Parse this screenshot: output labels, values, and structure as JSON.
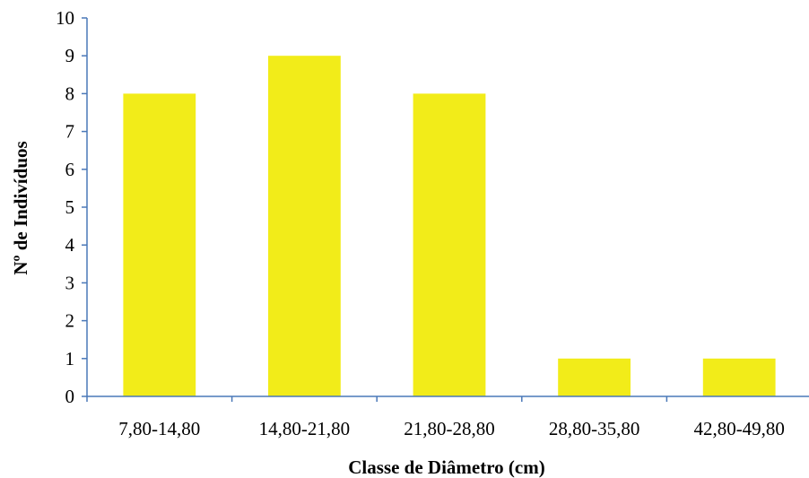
{
  "chart_data": {
    "type": "bar",
    "categories": [
      "7,80-14,80",
      "14,80-21,80",
      "21,80-28,80",
      "28,80-35,80",
      "42,80-49,80"
    ],
    "values": [
      8,
      9,
      8,
      1,
      1
    ],
    "title": "",
    "xlabel": "Classe de Diâmetro (cm)",
    "ylabel": "Nº de Indivíduos",
    "ylim": [
      0,
      10
    ],
    "yticks": [
      0,
      1,
      2,
      3,
      4,
      5,
      6,
      7,
      8,
      9,
      10
    ],
    "grid": false,
    "legend": "none",
    "bar_color": "#f2ec19",
    "axis_color": "#4a78b8"
  }
}
